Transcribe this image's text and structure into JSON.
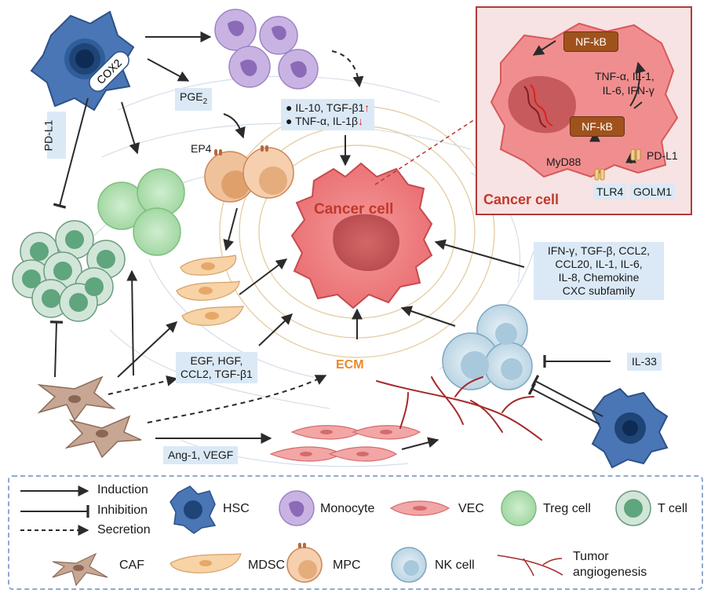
{
  "labels": {
    "cox2": "COX2",
    "pd_l1_side": "PD-L1",
    "pge2_base": "PGE",
    "pge2_sub": "2",
    "ep4": "EP4",
    "cancer_cell_main": "Cancer cell",
    "ecm": "ECM",
    "il33": "IL-33"
  },
  "cytokine_box_top": {
    "line1_text": "IL-10, TGF-β1",
    "line1_arrow": "↑",
    "line2_text": "TNF-α, IL-1β",
    "line2_arrow": "↓"
  },
  "box_caf_secretion": [
    "EGF, HGF,",
    "CCL2, TGF-β1"
  ],
  "box_angio": "Ang-1, VEGF",
  "box_nk_cytokines": [
    "IFN-γ, TGF-β, CCL2,",
    "CCL20, IL-1, IL-6,",
    "IL-8, Chemokine",
    "CXC subfamily"
  ],
  "inset": {
    "nfkb_top": "NF-kB",
    "nfkb_bottom": "NF-kB",
    "cytokines": [
      "TNF-α, IL-1,",
      "IL-6, IFN-γ"
    ],
    "myd88": "MyD88",
    "pd_l1": "PD-L1",
    "tlr4": "TLR4",
    "golm1": "GOLM1",
    "title": "Cancer cell"
  },
  "legend": {
    "induction": "Induction",
    "inhibition": "Inhibition",
    "secretion": "Secretion",
    "hsc": "HSC",
    "monocyte": "Monocyte",
    "vec": "VEC",
    "treg": "Treg cell",
    "tcell": "T cell",
    "caf": "CAF",
    "mdsc": "MDSC",
    "mpc": "MPC",
    "nk": "NK cell",
    "angio": [
      "Tumor",
      "angiogenesis"
    ]
  },
  "colors": {
    "cancer_red": "#c0392b",
    "ecm_orange": "#e8892a",
    "label_box_blue": "#dbe9f6",
    "legend_border": "#8fa9cf",
    "inset_border": "#b23a3a",
    "nfkb_fill": "#a0521d"
  }
}
